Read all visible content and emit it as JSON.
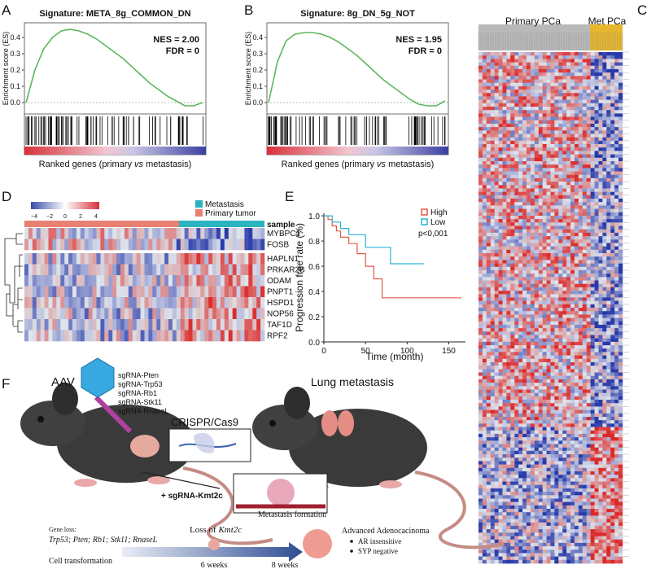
{
  "panels": {
    "A": {
      "label": "A",
      "title": "Signature: META_8g_COMMON_DN",
      "nes": "NES = 2.00",
      "fdr": "FDR = 0",
      "ylabel": "Enrichment score (ES)",
      "xlabel": [
        "Ranked genes (primary ",
        "vs",
        " metastasis)"
      ],
      "chart": {
        "type": "line",
        "color": "#5cb85c",
        "values": [
          0,
          0.2,
          0.33,
          0.4,
          0.44,
          0.45,
          0.44,
          0.42,
          0.39,
          0.35,
          0.31,
          0.27,
          0.22,
          0.17,
          0.12,
          0.08,
          0.04,
          0.01,
          -0.02,
          -0.02,
          0.0
        ],
        "ylim": [
          -0.05,
          0.47
        ],
        "yticks": [
          {
            "value": 0,
            "label": "0.0"
          },
          0.1,
          0.2,
          0.3,
          0.4
        ]
      }
    },
    "B": {
      "label": "B",
      "title": "Signature: 8g_DN_5g_NOT",
      "nes": "NES = 1.95",
      "fdr": "FDR = 0",
      "ylabel": "Enrichment score (ES)",
      "xlabel": [
        "Ranked genes (primary ",
        "vs",
        " metastasis)"
      ],
      "chart": {
        "type": "line",
        "color": "#5cb85c",
        "values": [
          0,
          0.25,
          0.38,
          0.42,
          0.43,
          0.43,
          0.42,
          0.4,
          0.37,
          0.33,
          0.29,
          0.24,
          0.19,
          0.14,
          0.1,
          0.06,
          0.02,
          -0.01,
          -0.02,
          -0.02,
          0.01
        ],
        "ylim": [
          -0.05,
          0.47
        ],
        "yticks": [
          {
            "value": 0,
            "label": "0.0"
          },
          0.1,
          0.2,
          0.3,
          0.4
        ]
      }
    },
    "C": {
      "label": "C",
      "groups": [
        "Primary PCa",
        "Met PCa"
      ]
    },
    "D": {
      "label": "D",
      "scale_ticks": [
        "−4",
        "−2",
        "0",
        "2",
        "4"
      ],
      "legend": [
        "Metastasis",
        "Primary tumor"
      ],
      "annotation": "sample",
      "genes": [
        "MYBPC1",
        "FOSB",
        "HAPLN1",
        "PRKAR2B",
        "ODAM",
        "PNPT1",
        "HSPD1",
        "NOP56",
        "TAF1D",
        "RPF2"
      ]
    },
    "E": {
      "label": "E",
      "ylabel": "Progression free rate (%)",
      "xlabel": "Time (month)",
      "pvalue": "p<0,001",
      "chart": {
        "type": "step",
        "xlim": [
          0,
          170
        ],
        "xticks": [
          0,
          50,
          100,
          150
        ],
        "ylim": [
          0,
          1.02
        ],
        "yticks": [
          {
            "value": 0,
            "label": "0.0"
          },
          0.2,
          0.4,
          0.6,
          0.8,
          {
            "value": 1,
            "label": "1.0"
          }
        ],
        "series": [
          {
            "name": "High",
            "color": "#e05a48",
            "x": [
              0,
              5,
              10,
              15,
              20,
              30,
              40,
              50,
              60,
              70,
              165
            ],
            "values": [
              1,
              0.97,
              0.92,
              0.88,
              0.83,
              0.78,
              0.7,
              0.6,
              0.5,
              0.35,
              0.35
            ]
          },
          {
            "name": "Low",
            "color": "#2bb3d6",
            "x": [
              0,
              10,
              20,
              30,
              50,
              80,
              120
            ],
            "values": [
              1,
              0.95,
              0.9,
              0.85,
              0.75,
              0.62,
              0.62
            ]
          }
        ]
      }
    },
    "F": {
      "label": "F",
      "vector": "AAV",
      "guides": [
        "sgRNA-Pten",
        "sgRNA-Trp53",
        "sgRNA-Rb1",
        "sgRNA-Stk11",
        "sgRNA-RnaseL"
      ],
      "crispr": "CRISPR/Cas9",
      "lung": "Lung metastasis",
      "extra_guide": "+ sgRNA-Kmt2c",
      "timeline": {
        "gene_loss_title": "Gene loss:",
        "gene_loss": "Trp53; Pten; Rb1; Stk11; RnaseL",
        "loss_of": "Loss of ",
        "kmt2c": "Kmt2c",
        "metastasis": "Metastasis formation",
        "transformation": "Cell transformation",
        "week6": "6 weeks",
        "week8": "8 weeks",
        "outcome": "Advanced Adenocacinoma",
        "bullets": [
          "AR insensitive",
          "SYP negative"
        ]
      }
    }
  }
}
